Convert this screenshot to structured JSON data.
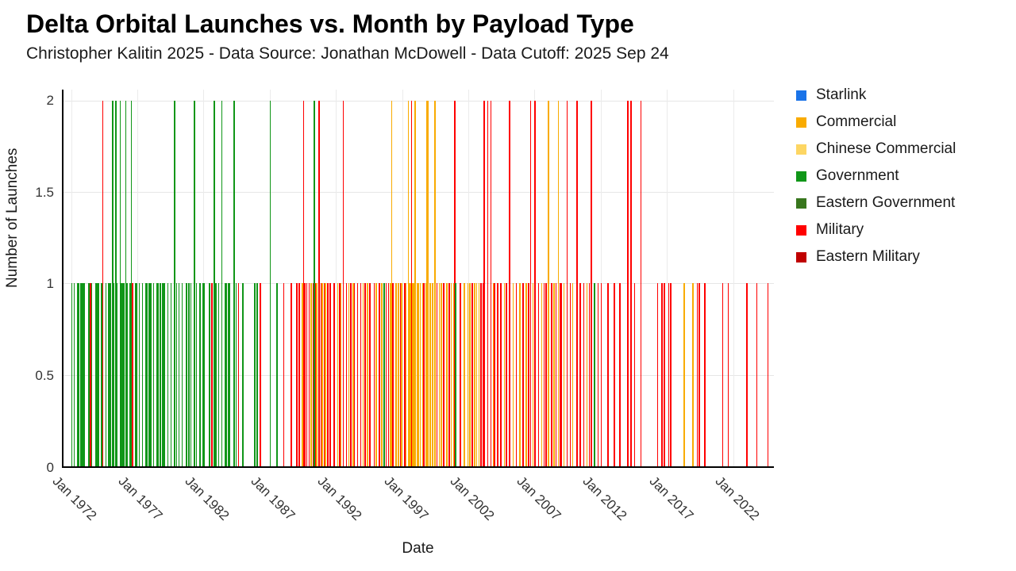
{
  "header": {
    "title": "Delta Orbital Launches vs. Month by Payload Type",
    "subtitle": "Christopher Kalitin 2025 - Data Source: Jonathan McDowell - Data Cutoff: 2025 Sep 24"
  },
  "legend": [
    {
      "label": "Starlink",
      "color": "#1a73e8"
    },
    {
      "label": "Commercial",
      "color": "#f9ab00"
    },
    {
      "label": "Chinese Commercial",
      "color": "#fdd663"
    },
    {
      "label": "Government",
      "color": "#109618"
    },
    {
      "label": "Eastern Government",
      "color": "#38761d"
    },
    {
      "label": "Military",
      "color": "#ff0000"
    },
    {
      "label": "Eastern Military",
      "color": "#c00000"
    }
  ],
  "chart_data": {
    "type": "bar",
    "title": "Delta Orbital Launches vs. Month by Payload Type",
    "xlabel": "Date",
    "ylabel": "Number of Launches",
    "ylim": [
      0,
      2.06
    ],
    "y_ticks": [
      {
        "v": 0,
        "label": "0"
      },
      {
        "v": 0.5,
        "label": "0.5"
      },
      {
        "v": 1,
        "label": "1"
      },
      {
        "v": 1.5,
        "label": "1.5"
      },
      {
        "v": 2,
        "label": "2"
      }
    ],
    "x_unit": "months since Jan 1972",
    "x_range_months": [
      -7,
      637
    ],
    "x_ticks": [
      {
        "m": 0,
        "label": "Jan 1972"
      },
      {
        "m": 60,
        "label": "Jan 1977"
      },
      {
        "m": 120,
        "label": "Jan 1982"
      },
      {
        "m": 180,
        "label": "Jan 1987"
      },
      {
        "m": 240,
        "label": "Jan 1992"
      },
      {
        "m": 300,
        "label": "Jan 1997"
      },
      {
        "m": 360,
        "label": "Jan 2002"
      },
      {
        "m": 420,
        "label": "Jan 2007"
      },
      {
        "m": 480,
        "label": "Jan 2012"
      },
      {
        "m": 540,
        "label": "Jan 2017"
      },
      {
        "m": 600,
        "label": "Jan 2022"
      }
    ],
    "grid": true,
    "legend_position": "right",
    "category_codes": {
      "G": "Government",
      "M": "Military",
      "C": "Commercial"
    },
    "bars_format": [
      "month_index",
      "launches",
      "category_code"
    ],
    "bars": [
      [
        0,
        1,
        "G"
      ],
      [
        2,
        1,
        "G"
      ],
      [
        5,
        1,
        "G"
      ],
      [
        6,
        1,
        "G"
      ],
      [
        8,
        1,
        "G"
      ],
      [
        9,
        1,
        "G"
      ],
      [
        10,
        1,
        "G"
      ],
      [
        11,
        1,
        "G"
      ],
      [
        15,
        1,
        "G"
      ],
      [
        16,
        1,
        "G"
      ],
      [
        17,
        1,
        "M"
      ],
      [
        18,
        1,
        "G"
      ],
      [
        22,
        1,
        "G"
      ],
      [
        23,
        1,
        "G"
      ],
      [
        24,
        1,
        "G"
      ],
      [
        27,
        1,
        "G"
      ],
      [
        28,
        2,
        "M"
      ],
      [
        31,
        1,
        "G"
      ],
      [
        33,
        1,
        "G"
      ],
      [
        34,
        1,
        "G"
      ],
      [
        35,
        1,
        "G"
      ],
      [
        37,
        2,
        "G"
      ],
      [
        38,
        1,
        "G"
      ],
      [
        40,
        2,
        "G"
      ],
      [
        41,
        1,
        "G"
      ],
      [
        44,
        2,
        "G"
      ],
      [
        45,
        1,
        "G"
      ],
      [
        46,
        1,
        "G"
      ],
      [
        47,
        1,
        "G"
      ],
      [
        49,
        2,
        "G"
      ],
      [
        50,
        1,
        "G"
      ],
      [
        53,
        1,
        "G"
      ],
      [
        54,
        2,
        "G"
      ],
      [
        55,
        1,
        "M"
      ],
      [
        58,
        1,
        "G"
      ],
      [
        59,
        1,
        "G"
      ],
      [
        61,
        1,
        "G"
      ],
      [
        64,
        1,
        "G"
      ],
      [
        67,
        1,
        "G"
      ],
      [
        68,
        1,
        "G"
      ],
      [
        70,
        1,
        "G"
      ],
      [
        71,
        1,
        "G"
      ],
      [
        72,
        1,
        "G"
      ],
      [
        74,
        1,
        "G"
      ],
      [
        77,
        1,
        "G"
      ],
      [
        78,
        1,
        "G"
      ],
      [
        80,
        1,
        "G"
      ],
      [
        82,
        1,
        "G"
      ],
      [
        83,
        1,
        "G"
      ],
      [
        84,
        1,
        "G"
      ],
      [
        87,
        1,
        "G"
      ],
      [
        90,
        1,
        "G"
      ],
      [
        93,
        2,
        "G"
      ],
      [
        95,
        1,
        "G"
      ],
      [
        97,
        1,
        "G"
      ],
      [
        100,
        1,
        "G"
      ],
      [
        104,
        1,
        "G"
      ],
      [
        106,
        1,
        "G"
      ],
      [
        108,
        1,
        "G"
      ],
      [
        111,
        2,
        "G"
      ],
      [
        113,
        1,
        "G"
      ],
      [
        116,
        1,
        "G"
      ],
      [
        119,
        1,
        "G"
      ],
      [
        120,
        1,
        "G"
      ],
      [
        125,
        1,
        "G"
      ],
      [
        127,
        1,
        "M"
      ],
      [
        129,
        2,
        "G"
      ],
      [
        130,
        1,
        "G"
      ],
      [
        131,
        1,
        "G"
      ],
      [
        133,
        1,
        "G"
      ],
      [
        136,
        2,
        "G"
      ],
      [
        139,
        1,
        "G"
      ],
      [
        140,
        1,
        "G"
      ],
      [
        142,
        1,
        "G"
      ],
      [
        143,
        1,
        "G"
      ],
      [
        147,
        2,
        "G"
      ],
      [
        149,
        1,
        "G"
      ],
      [
        151,
        1,
        "M"
      ],
      [
        155,
        1,
        "G"
      ],
      [
        166,
        1,
        "G"
      ],
      [
        168,
        1,
        "G"
      ],
      [
        171,
        1,
        "M"
      ],
      [
        180,
        2,
        "G"
      ],
      [
        186,
        1,
        "G"
      ],
      [
        192,
        1,
        "M"
      ],
      [
        199,
        1,
        "M"
      ],
      [
        204,
        1,
        "M"
      ],
      [
        206,
        1,
        "M"
      ],
      [
        209,
        1,
        "C"
      ],
      [
        210,
        2,
        "M"
      ],
      [
        211,
        1,
        "M"
      ],
      [
        213,
        1,
        "M"
      ],
      [
        215,
        1,
        "M"
      ],
      [
        217,
        1,
        "C"
      ],
      [
        219,
        1,
        "M"
      ],
      [
        220,
        2,
        "G"
      ],
      [
        221,
        1,
        "M"
      ],
      [
        222,
        1,
        "C"
      ],
      [
        224,
        2,
        "M"
      ],
      [
        226,
        1,
        "M"
      ],
      [
        227,
        1,
        "C"
      ],
      [
        229,
        1,
        "M"
      ],
      [
        230,
        1,
        "C"
      ],
      [
        232,
        1,
        "M"
      ],
      [
        234,
        1,
        "M"
      ],
      [
        238,
        1,
        "M"
      ],
      [
        241,
        1,
        "C"
      ],
      [
        243,
        1,
        "M"
      ],
      [
        244,
        1,
        "C"
      ],
      [
        246,
        2,
        "M"
      ],
      [
        249,
        1,
        "M"
      ],
      [
        251,
        1,
        "C"
      ],
      [
        253,
        1,
        "M"
      ],
      [
        255,
        1,
        "C"
      ],
      [
        256,
        1,
        "M"
      ],
      [
        259,
        1,
        "M"
      ],
      [
        262,
        1,
        "M"
      ],
      [
        264,
        1,
        "C"
      ],
      [
        266,
        1,
        "M"
      ],
      [
        268,
        1,
        "C"
      ],
      [
        270,
        1,
        "M"
      ],
      [
        274,
        1,
        "M"
      ],
      [
        276,
        1,
        "C"
      ],
      [
        279,
        1,
        "M"
      ],
      [
        281,
        1,
        "C"
      ],
      [
        283,
        1,
        "G"
      ],
      [
        285,
        1,
        "M"
      ],
      [
        287,
        1,
        "M"
      ],
      [
        289,
        1,
        "C"
      ],
      [
        290,
        2,
        "C"
      ],
      [
        291,
        1,
        "M"
      ],
      [
        294,
        1,
        "C"
      ],
      [
        296,
        1,
        "C"
      ],
      [
        298,
        1,
        "M"
      ],
      [
        299,
        1,
        "C"
      ],
      [
        302,
        1,
        "M"
      ],
      [
        303,
        1,
        "C"
      ],
      [
        305,
        2,
        "C"
      ],
      [
        306,
        1,
        "C"
      ],
      [
        307,
        1,
        "C"
      ],
      [
        308,
        2,
        "M"
      ],
      [
        309,
        1,
        "C"
      ],
      [
        310,
        1,
        "C"
      ],
      [
        311,
        2,
        "C"
      ],
      [
        313,
        1,
        "C"
      ],
      [
        314,
        1,
        "C"
      ],
      [
        316,
        1,
        "C"
      ],
      [
        318,
        1,
        "C"
      ],
      [
        319,
        1,
        "M"
      ],
      [
        321,
        1,
        "C"
      ],
      [
        322,
        2,
        "C"
      ],
      [
        323,
        2,
        "C"
      ],
      [
        325,
        1,
        "C"
      ],
      [
        327,
        1,
        "C"
      ],
      [
        329,
        2,
        "C"
      ],
      [
        331,
        1,
        "M"
      ],
      [
        333,
        1,
        "C"
      ],
      [
        335,
        1,
        "C"
      ],
      [
        337,
        1,
        "M"
      ],
      [
        340,
        1,
        "C"
      ],
      [
        342,
        1,
        "M"
      ],
      [
        344,
        1,
        "C"
      ],
      [
        346,
        1,
        "C"
      ],
      [
        347,
        2,
        "M"
      ],
      [
        348,
        1,
        "G"
      ],
      [
        352,
        1,
        "M"
      ],
      [
        356,
        1,
        "C"
      ],
      [
        359,
        1,
        "C"
      ],
      [
        361,
        1,
        "C"
      ],
      [
        363,
        1,
        "M"
      ],
      [
        365,
        1,
        "C"
      ],
      [
        367,
        1,
        "C"
      ],
      [
        369,
        1,
        "C"
      ],
      [
        371,
        1,
        "M"
      ],
      [
        373,
        1,
        "M"
      ],
      [
        374,
        2,
        "M"
      ],
      [
        377,
        2,
        "M"
      ],
      [
        380,
        2,
        "M"
      ],
      [
        382,
        1,
        "C"
      ],
      [
        383,
        1,
        "M"
      ],
      [
        386,
        1,
        "M"
      ],
      [
        389,
        1,
        "M"
      ],
      [
        392,
        1,
        "C"
      ],
      [
        394,
        1,
        "M"
      ],
      [
        397,
        2,
        "M"
      ],
      [
        400,
        1,
        "C"
      ],
      [
        403,
        1,
        "M"
      ],
      [
        406,
        1,
        "C"
      ],
      [
        409,
        1,
        "M"
      ],
      [
        412,
        1,
        "C"
      ],
      [
        414,
        1,
        "M"
      ],
      [
        416,
        2,
        "M"
      ],
      [
        418,
        1,
        "C"
      ],
      [
        420,
        2,
        "M"
      ],
      [
        423,
        1,
        "M"
      ],
      [
        426,
        1,
        "C"
      ],
      [
        428,
        1,
        "M"
      ],
      [
        430,
        1,
        "M"
      ],
      [
        432,
        2,
        "C"
      ],
      [
        435,
        1,
        "M"
      ],
      [
        437,
        1,
        "C"
      ],
      [
        439,
        1,
        "M"
      ],
      [
        441,
        2,
        "C"
      ],
      [
        443,
        1,
        "M"
      ],
      [
        444,
        1,
        "M"
      ],
      [
        446,
        1,
        "C"
      ],
      [
        449,
        2,
        "M"
      ],
      [
        452,
        1,
        "M"
      ],
      [
        454,
        1,
        "C"
      ],
      [
        458,
        2,
        "M"
      ],
      [
        461,
        1,
        "M"
      ],
      [
        464,
        1,
        "M"
      ],
      [
        467,
        1,
        "C"
      ],
      [
        469,
        1,
        "M"
      ],
      [
        471,
        2,
        "M"
      ],
      [
        474,
        1,
        "G"
      ],
      [
        477,
        1,
        "M"
      ],
      [
        480,
        1,
        "M"
      ],
      [
        486,
        1,
        "M"
      ],
      [
        492,
        1,
        "M"
      ],
      [
        497,
        1,
        "M"
      ],
      [
        504,
        2,
        "M"
      ],
      [
        507,
        2,
        "M"
      ],
      [
        510,
        1,
        "M"
      ],
      [
        516,
        2,
        "M"
      ],
      [
        531,
        1,
        "M"
      ],
      [
        535,
        1,
        "M"
      ],
      [
        537,
        1,
        "M"
      ],
      [
        541,
        1,
        "M"
      ],
      [
        543,
        1,
        "M"
      ],
      [
        555,
        1,
        "C"
      ],
      [
        563,
        1,
        "C"
      ],
      [
        567,
        1,
        "M"
      ],
      [
        569,
        1,
        "M"
      ],
      [
        574,
        1,
        "M"
      ],
      [
        590,
        1,
        "M"
      ],
      [
        595,
        1,
        "M"
      ],
      [
        612,
        1,
        "M"
      ],
      [
        621,
        1,
        "M"
      ],
      [
        631,
        1,
        "M"
      ]
    ]
  },
  "palette": {
    "G": "#109618",
    "M": "#ff0000",
    "C": "#f9ab00"
  }
}
